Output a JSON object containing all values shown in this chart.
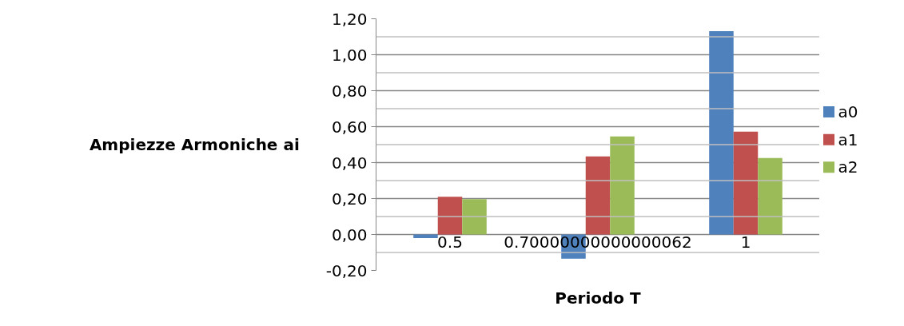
{
  "chart_data": {
    "type": "bar",
    "xlabel": "Periodo T",
    "ylabel": "Ampiezze Armoniche ai",
    "categories": [
      "0.5",
      "0.70000000000000062",
      "1"
    ],
    "series": [
      {
        "name": "a0",
        "color": "#4f81bd",
        "values": [
          -0.02,
          -0.134,
          1.131
        ]
      },
      {
        "name": "a1",
        "color": "#c0504d",
        "values": [
          0.21,
          0.434,
          0.572
        ]
      },
      {
        "name": "a2",
        "color": "#9bbb59",
        "values": [
          0.197,
          0.546,
          0.426
        ]
      }
    ],
    "ylim": [
      -0.2,
      1.2
    ],
    "yticks": [
      {
        "value": -0.2,
        "label": "-0,20"
      },
      {
        "value": -0.1,
        "label": null
      },
      {
        "value": 0,
        "label": "0,00"
      },
      {
        "value": 0.1,
        "label": null
      },
      {
        "value": 0.2,
        "label": "0,20"
      },
      {
        "value": 0.3,
        "label": null
      },
      {
        "value": 0.4,
        "label": "0,40"
      },
      {
        "value": 0.5,
        "label": null
      },
      {
        "value": 0.6,
        "label": "0,60"
      },
      {
        "value": 0.7,
        "label": null
      },
      {
        "value": 0.8,
        "label": "0,80"
      },
      {
        "value": 0.9,
        "label": null
      },
      {
        "value": 1.0,
        "label": "1,00"
      },
      {
        "value": 1.1,
        "label": null
      },
      {
        "value": 1.2,
        "label": "1,20"
      }
    ],
    "grid": "y",
    "legend": "right"
  }
}
